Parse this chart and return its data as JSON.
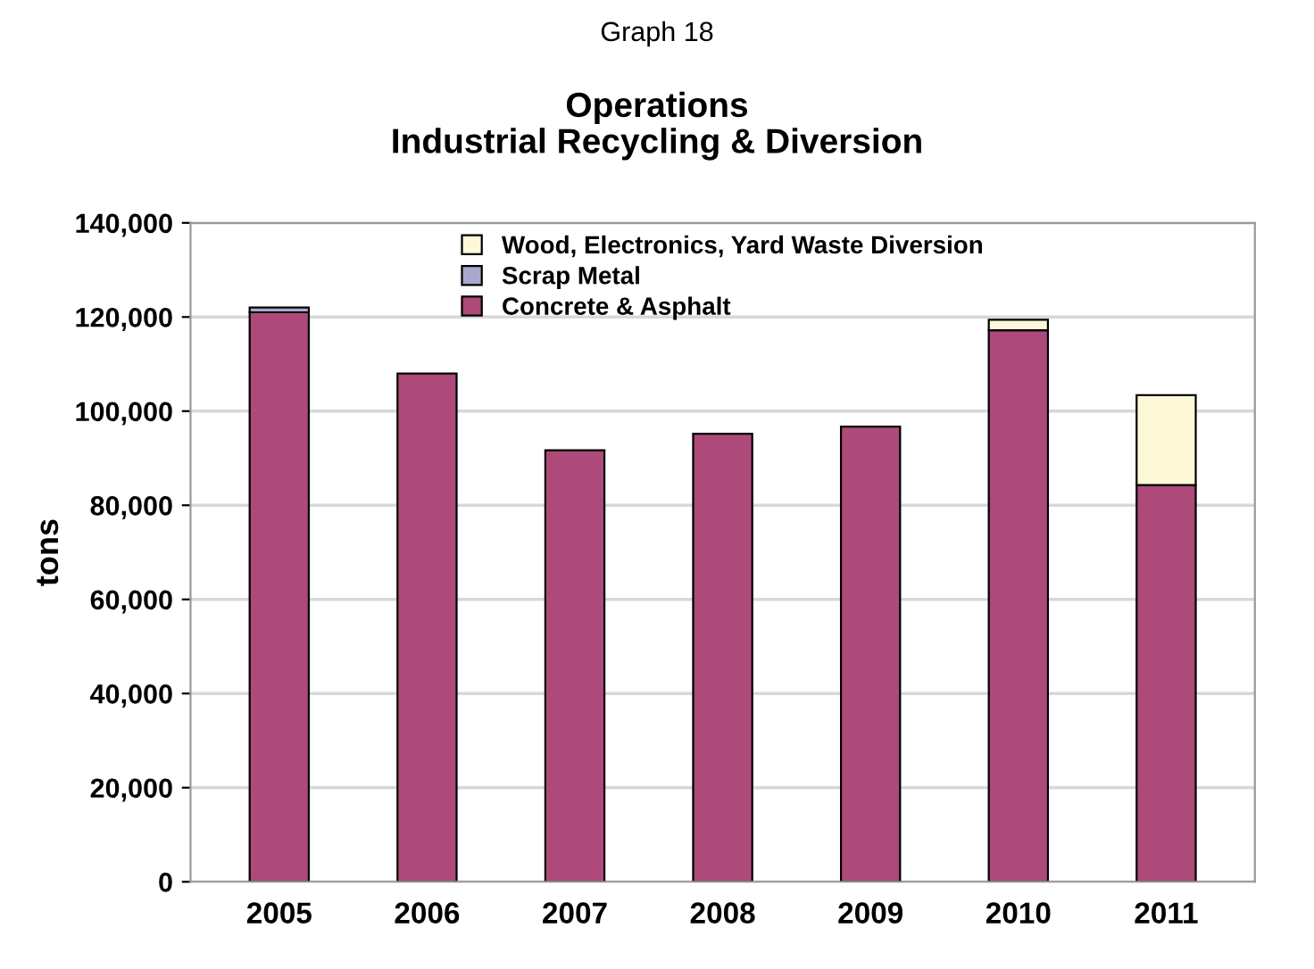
{
  "chart_data": {
    "type": "bar",
    "stacked": true,
    "title": "Operations\nIndustrial Recycling & Diversion",
    "annotations": [
      "Graph 18"
    ],
    "ylabel": "tons",
    "categories": [
      "2005",
      "2006",
      "2007",
      "2008",
      "2009",
      "2010",
      "2011"
    ],
    "series": [
      {
        "name": "Concrete & Asphalt",
        "color": "#ad4a7a",
        "values": [
          121000,
          108000,
          91700,
          95200,
          96700,
          117200,
          84300
        ]
      },
      {
        "name": "Scrap Metal",
        "color": "#a8a8d0",
        "values": [
          1000,
          null,
          null,
          null,
          null,
          null,
          null
        ]
      },
      {
        "name": "Wood, Electronics, Yard Waste Diversion",
        "color": "#fdf8d8",
        "values": [
          null,
          null,
          null,
          null,
          null,
          2200,
          19100
        ]
      }
    ],
    "ylim": [
      0,
      140000
    ],
    "yticks": [
      {
        "value": 0,
        "label": "0"
      },
      {
        "value": 20000,
        "label": "20,000"
      },
      {
        "value": 40000,
        "label": "40,000"
      },
      {
        "value": 60000,
        "label": "60,000"
      },
      {
        "value": 80000,
        "label": "80,000"
      },
      {
        "value": 100000,
        "label": "100,000"
      },
      {
        "value": 120000,
        "label": "120,000"
      },
      {
        "value": 140000,
        "label": "140,000"
      }
    ],
    "grid": "y",
    "legend": "top"
  }
}
